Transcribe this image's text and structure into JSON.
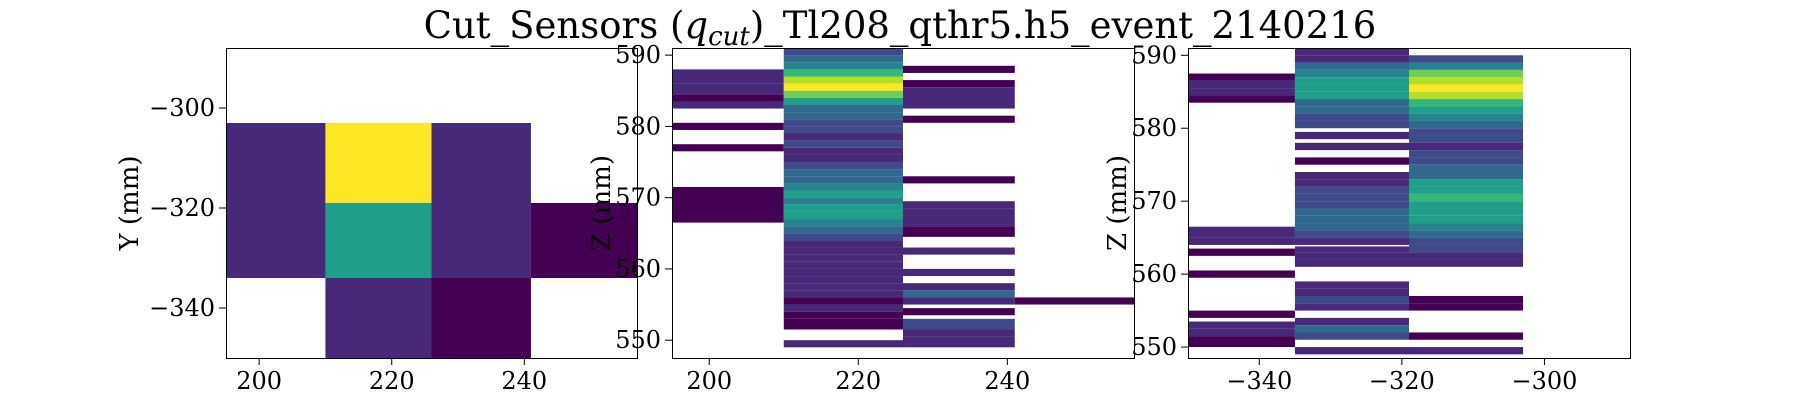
{
  "title_main": "Cut_Sensors (",
  "title_q": "q",
  "title_sub": "cut",
  "title_rest": ")_Tl208_qthr5.h5_event_2140216",
  "colormap": [
    "#440154",
    "#482878",
    "#3e4a89",
    "#31688e",
    "#26828e",
    "#1f9e89",
    "#35b779",
    "#6ece58",
    "#b5de2b",
    "#fde725"
  ],
  "chart_data": [
    {
      "type": "heatmap",
      "xlabel": "",
      "ylabel": "Y (mm)",
      "xlim": [
        195,
        257
      ],
      "ylim": [
        -350,
        -288
      ],
      "xticks": [
        200,
        220,
        240
      ],
      "yticks": [
        -340,
        -320,
        -300
      ],
      "xtick_labels": [
        "200",
        "220",
        "240"
      ],
      "ytick_labels": [
        "−340",
        "−320",
        "−300"
      ],
      "cells": [
        {
          "x": [
            195,
            210
          ],
          "y": [
            -319,
            -303
          ],
          "v": 0.1
        },
        {
          "x": [
            210,
            226
          ],
          "y": [
            -319,
            -303
          ],
          "v": 1.0
        },
        {
          "x": [
            226,
            241
          ],
          "y": [
            -319,
            -303
          ],
          "v": 0.15
        },
        {
          "x": [
            195,
            210
          ],
          "y": [
            -334,
            -319
          ],
          "v": 0.1
        },
        {
          "x": [
            210,
            226
          ],
          "y": [
            -334,
            -319
          ],
          "v": 0.55
        },
        {
          "x": [
            226,
            241
          ],
          "y": [
            -334,
            -319
          ],
          "v": 0.1
        },
        {
          "x": [
            241,
            257
          ],
          "y": [
            -334,
            -319
          ],
          "v": 0.02
        },
        {
          "x": [
            210,
            226
          ],
          "y": [
            -350,
            -334
          ],
          "v": 0.08
        },
        {
          "x": [
            226,
            241
          ],
          "y": [
            -350,
            -334
          ],
          "v": 0.04
        }
      ]
    },
    {
      "type": "heatmap",
      "xlabel": "",
      "ylabel": "Z (mm)",
      "xlim": [
        195,
        257
      ],
      "ylim": [
        547.5,
        591
      ],
      "xticks": [
        200,
        220,
        240
      ],
      "yticks": [
        550,
        560,
        570,
        580,
        590
      ],
      "xtick_labels": [
        "200",
        "220",
        "240"
      ],
      "ytick_labels": [
        "550",
        "560",
        "570",
        "580",
        "590"
      ],
      "columns": [
        {
          "x": [
            195,
            210
          ],
          "rows": [
            [
              586,
              588,
              0.06
            ],
            [
              584.5,
              586,
              0.12
            ],
            [
              583.5,
              584.5,
              0.04
            ],
            [
              582.5,
              583.5,
              0.08
            ],
            [
              579.5,
              580.5,
              0.04
            ],
            [
              576.5,
              577.5,
              0.03
            ],
            [
              566.5,
              571.5,
              0.05
            ]
          ]
        },
        {
          "x": [
            210,
            226
          ],
          "rows": [
            [
              590,
              591,
              0.2
            ],
            [
              589,
              590,
              0.3
            ],
            [
              588,
              589,
              0.45
            ],
            [
              587,
              588,
              0.65
            ],
            [
              586,
              587,
              0.85
            ],
            [
              585,
              586,
              1.0
            ],
            [
              584,
              585,
              0.75
            ],
            [
              583,
              584,
              0.5
            ],
            [
              582,
              583,
              0.35
            ],
            [
              581,
              582,
              0.3
            ],
            [
              580,
              581,
              0.25
            ],
            [
              579,
              580,
              0.2
            ],
            [
              578,
              579,
              0.15
            ],
            [
              577,
              578,
              0.2
            ],
            [
              576,
              577,
              0.15
            ],
            [
              575,
              576,
              0.12
            ],
            [
              574,
              575,
              0.18
            ],
            [
              573,
              574,
              0.3
            ],
            [
              572,
              573,
              0.38
            ],
            [
              571,
              572,
              0.45
            ],
            [
              570,
              571,
              0.5
            ],
            [
              569,
              570,
              0.45
            ],
            [
              568,
              569,
              0.55
            ],
            [
              567,
              568,
              0.5
            ],
            [
              566,
              567,
              0.4
            ],
            [
              565,
              566,
              0.3
            ],
            [
              564,
              565,
              0.22
            ],
            [
              563,
              564,
              0.16
            ],
            [
              562,
              563,
              0.12
            ],
            [
              561,
              562,
              0.1
            ],
            [
              560,
              561,
              0.08
            ],
            [
              559,
              560,
              0.12
            ],
            [
              558,
              559,
              0.06
            ],
            [
              557,
              558,
              0.1
            ],
            [
              556,
              557,
              0.08
            ],
            [
              555,
              556,
              0.05
            ],
            [
              554,
              555,
              0.08
            ],
            [
              553,
              554,
              0.03
            ],
            [
              551.5,
              553,
              0.02
            ],
            [
              549,
              550,
              0.06
            ]
          ]
        },
        {
          "x": [
            226,
            241
          ],
          "rows": [
            [
              587.5,
              588.5,
              0.04
            ],
            [
              585.5,
              586.5,
              0.03
            ],
            [
              582.5,
              585.5,
              0.06
            ],
            [
              580.5,
              581.5,
              0.04
            ],
            [
              572,
              573,
              0.05
            ],
            [
              568.5,
              569.5,
              0.1
            ],
            [
              567.5,
              568.5,
              0.06
            ],
            [
              566,
              567.5,
              0.08
            ],
            [
              564.5,
              566,
              0.05
            ],
            [
              562,
              563,
              0.06
            ],
            [
              559,
              560,
              0.08
            ],
            [
              557,
              558,
              0.12
            ],
            [
              556,
              557,
              0.3
            ],
            [
              555,
              556,
              0.1
            ],
            [
              553.5,
              554.5,
              0.05
            ],
            [
              551.5,
              553,
              0.2
            ],
            [
              550.5,
              551.5,
              0.15
            ],
            [
              549,
              550.5,
              0.08
            ]
          ]
        },
        {
          "x": [
            241,
            257
          ],
          "rows": [
            [
              555,
              556,
              0.05
            ]
          ]
        }
      ]
    },
    {
      "type": "heatmap",
      "xlabel": "",
      "ylabel": "Z (mm)",
      "xlim": [
        -350,
        -288
      ],
      "ylim": [
        548.5,
        591
      ],
      "xticks": [
        -340,
        -320,
        -300
      ],
      "yticks": [
        550,
        560,
        570,
        580,
        590
      ],
      "xtick_labels": [
        "−340",
        "−320",
        "−300"
      ],
      "ytick_labels": [
        "550",
        "560",
        "570",
        "580",
        "590"
      ],
      "columns": [
        {
          "x": [
            -350,
            -335
          ],
          "rows": [
            [
              586.5,
              587.5,
              0.05
            ],
            [
              585.5,
              586.5,
              0.1
            ],
            [
              584.5,
              585.5,
              0.06
            ],
            [
              583.5,
              584.5,
              0.04
            ],
            [
              565,
              566.5,
              0.06
            ],
            [
              564,
              565,
              0.1
            ],
            [
              562.5,
              563.5,
              0.04
            ],
            [
              559.5,
              560.5,
              0.05
            ],
            [
              554,
              555,
              0.04
            ],
            [
              552.5,
              553.5,
              0.06
            ],
            [
              551.5,
              552.5,
              0.1
            ],
            [
              550,
              551.5,
              0.04
            ]
          ]
        },
        {
          "x": [
            -335,
            -319
          ],
          "rows": [
            [
              590,
              591,
              0.08
            ],
            [
              589,
              590,
              0.15
            ],
            [
              588,
              589,
              0.3
            ],
            [
              587,
              588,
              0.4
            ],
            [
              586,
              587,
              0.5
            ],
            [
              585,
              586,
              0.6
            ],
            [
              584,
              585,
              0.5
            ],
            [
              583,
              584,
              0.38
            ],
            [
              582,
              583,
              0.3
            ],
            [
              581,
              582,
              0.25
            ],
            [
              580,
              581,
              0.2
            ],
            [
              578.5,
              579.5,
              0.1
            ],
            [
              577,
              578,
              0.06
            ],
            [
              575,
              576,
              0.04
            ],
            [
              573,
              574,
              0.06
            ],
            [
              572,
              573,
              0.12
            ],
            [
              571,
              572,
              0.18
            ],
            [
              570,
              571,
              0.2
            ],
            [
              569,
              570,
              0.25
            ],
            [
              568,
              569,
              0.3
            ],
            [
              567,
              568,
              0.35
            ],
            [
              566,
              567,
              0.28
            ],
            [
              565,
              566,
              0.2
            ],
            [
              564,
              565,
              0.15
            ],
            [
              563,
              563.8,
              0.1
            ],
            [
              562,
              563,
              0.12
            ],
            [
              561,
              562,
              0.15
            ],
            [
              558,
              559,
              0.1
            ],
            [
              557,
              558,
              0.12
            ],
            [
              556,
              557,
              0.2
            ],
            [
              555,
              556,
              0.15
            ],
            [
              553,
              554,
              0.1
            ],
            [
              552,
              553,
              0.3
            ],
            [
              551,
              552,
              0.2
            ],
            [
              549,
              550,
              0.06
            ]
          ]
        },
        {
          "x": [
            -319,
            -303
          ],
          "rows": [
            [
              589,
              590,
              0.25
            ],
            [
              588,
              589,
              0.45
            ],
            [
              587,
              588,
              0.75
            ],
            [
              586,
              587,
              0.9
            ],
            [
              585,
              586,
              1.0
            ],
            [
              584,
              585,
              0.9
            ],
            [
              583,
              584,
              0.7
            ],
            [
              582,
              583,
              0.5
            ],
            [
              581,
              582,
              0.4
            ],
            [
              580,
              581,
              0.3
            ],
            [
              579,
              580,
              0.25
            ],
            [
              578,
              579,
              0.2
            ],
            [
              577,
              578,
              0.15
            ],
            [
              576,
              577,
              0.2
            ],
            [
              575,
              576,
              0.25
            ],
            [
              574,
              575,
              0.3
            ],
            [
              573,
              574,
              0.38
            ],
            [
              572,
              573,
              0.5
            ],
            [
              571,
              572,
              0.6
            ],
            [
              570,
              571,
              0.65
            ],
            [
              569,
              570,
              0.55
            ],
            [
              568,
              569,
              0.6
            ],
            [
              567,
              568,
              0.5
            ],
            [
              566,
              567,
              0.4
            ],
            [
              565,
              566,
              0.32
            ],
            [
              564,
              565,
              0.25
            ],
            [
              563,
              564,
              0.2
            ],
            [
              562,
              563,
              0.15
            ],
            [
              561,
              562,
              0.08
            ],
            [
              556,
              557,
              0.05
            ],
            [
              555,
              556,
              0.04
            ],
            [
              551,
              552,
              0.05
            ],
            [
              549,
              550,
              0.06
            ]
          ]
        }
      ]
    }
  ]
}
